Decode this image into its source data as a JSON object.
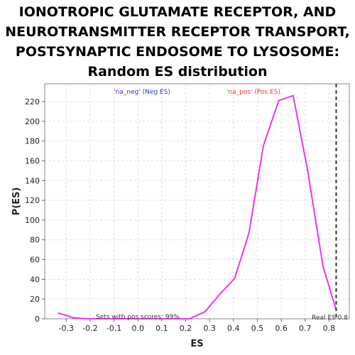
{
  "title_lines": [
    "IONOTROPIC GLUTAMATE RECEPTOR, AND",
    "NEUROTRANSMITTER RECEPTOR TRANSPORT,",
    "POSTSYNAPTIC ENDOSOME TO LYSOSOME:",
    "Random ES distribution"
  ],
  "chart_data": {
    "type": "line",
    "title": "IONOTROPIC GLUTAMATE RECEPTOR, AND NEUROTRANSMITTER RECEPTOR TRANSPORT, POSTSYNAPTIC ENDOSOME TO LYSOSOME: Random ES distribution",
    "xlabel": "ES",
    "ylabel": "P(ES)",
    "xlim": [
      -0.39,
      0.885
    ],
    "ylim": [
      0,
      238
    ],
    "x_ticks": [
      -0.3,
      -0.2,
      -0.1,
      0.0,
      0.1,
      0.2,
      0.3,
      0.4,
      0.5,
      0.6,
      0.7,
      0.8
    ],
    "x_tick_labels": [
      "-0.3",
      "-0.2",
      "-0.1",
      "0.0",
      "0.1",
      "0.2",
      "0.3",
      "0.4",
      "0.5",
      "0.6",
      "0.7",
      "0.8"
    ],
    "y_ticks": [
      0,
      20,
      40,
      60,
      80,
      100,
      120,
      140,
      160,
      180,
      200,
      220
    ],
    "y_tick_labels": [
      "0",
      "20",
      "40",
      "60",
      "80",
      "100",
      "120",
      "140",
      "160",
      "180",
      "200",
      "220"
    ],
    "grid": true,
    "series": [
      {
        "color": "#ee33ee",
        "x": [
          -0.335,
          -0.27,
          -0.21,
          -0.15,
          -0.09,
          -0.03,
          0.03,
          0.09,
          0.155,
          0.215,
          0.28,
          0.34,
          0.405,
          0.465,
          0.525,
          0.59,
          0.65,
          0.71,
          0.775,
          0.83
        ],
        "values": [
          6,
          1,
          0,
          0,
          0,
          0,
          0,
          0,
          0,
          0,
          7,
          24,
          41,
          87,
          175,
          221,
          226,
          151,
          53,
          9
        ]
      }
    ],
    "vlines": [
      {
        "x": 0.83,
        "color": "#333333",
        "style": "dashed"
      }
    ],
    "annotations": {
      "neg_label": "'na_neg' (Neg ES)",
      "pos_label": "'na_pos' (Pos ES)",
      "sets_label": "Sets with pos scores: 99%",
      "real_es_label": "Real ES 0.8"
    },
    "colors": {
      "neg": "#3333cc",
      "pos": "#ee3333",
      "line": "#ee33ee"
    }
  }
}
